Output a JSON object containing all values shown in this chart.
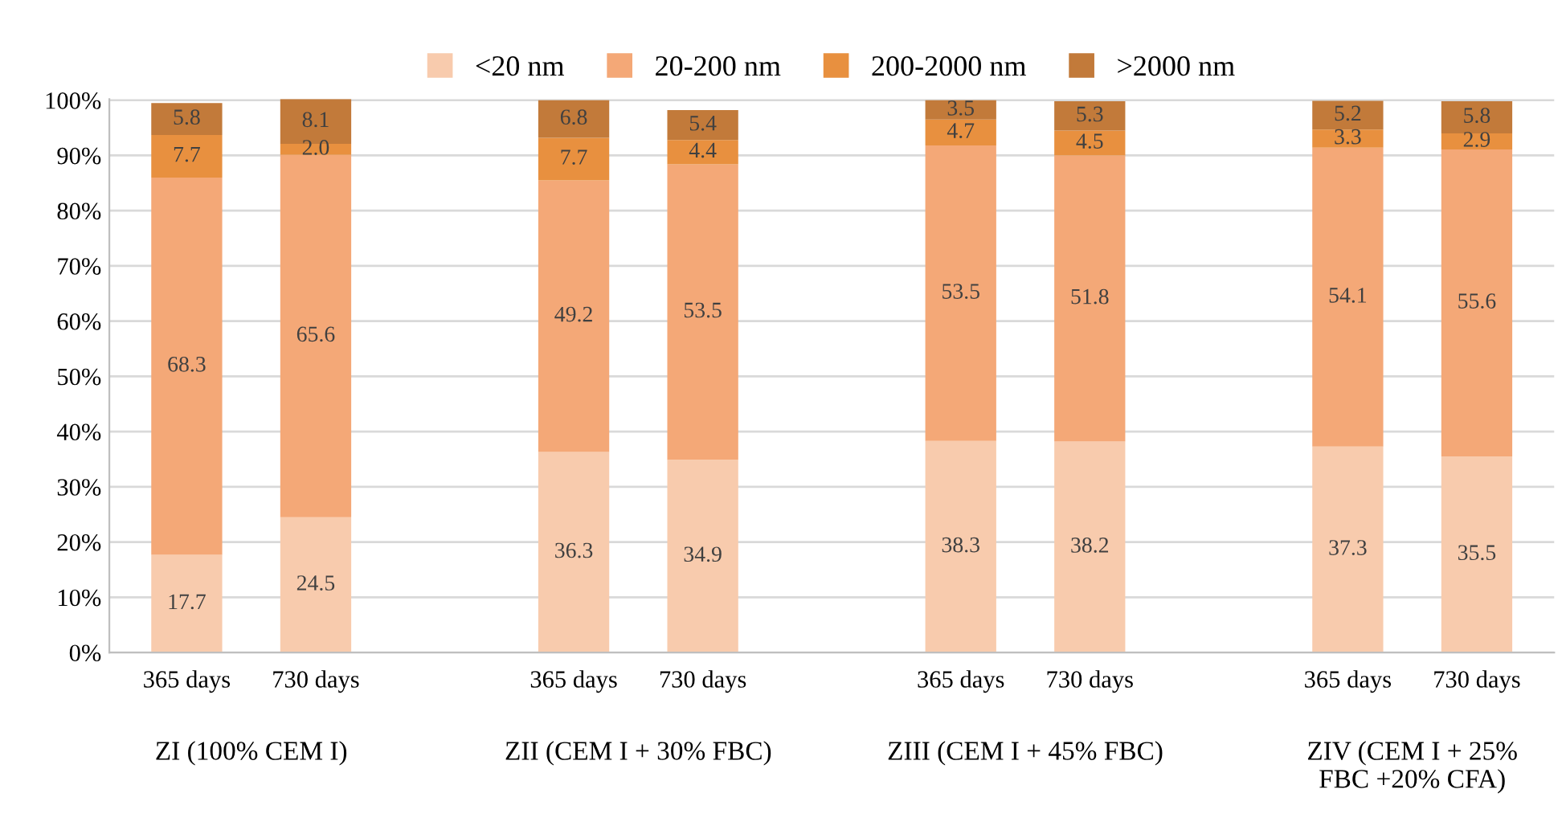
{
  "chart_data": {
    "type": "bar",
    "stacked": true,
    "categories": [
      "365 days",
      "730 days",
      null,
      "365 days",
      "730 days",
      null,
      "365 days",
      "730 days",
      null,
      "365 days",
      "730 days"
    ],
    "series": [
      {
        "name": "<20 nm",
        "color": "#f8cbad",
        "values": [
          17.7,
          24.5,
          null,
          36.3,
          34.9,
          null,
          38.3,
          38.2,
          null,
          37.3,
          35.5
        ],
        "value_labels": [
          "17.7",
          "24.5",
          null,
          "36.3",
          "34.9",
          null,
          "38.3",
          "38.2",
          null,
          "37.3",
          "35.5"
        ]
      },
      {
        "name": "20-200 nm",
        "color": "#f4a877",
        "values": [
          68.3,
          65.6,
          null,
          49.2,
          53.5,
          null,
          53.5,
          51.8,
          null,
          54.1,
          55.6
        ],
        "value_labels": [
          "68.3",
          "65.6",
          null,
          "49.2",
          "53.5",
          null,
          "53.5",
          "51.8",
          null,
          "54.1",
          "55.6"
        ]
      },
      {
        "name": "200-2000 nm",
        "color": "#e8903f",
        "values": [
          7.7,
          2.0,
          null,
          7.7,
          4.4,
          null,
          4.7,
          4.5,
          null,
          3.3,
          2.9
        ],
        "value_labels": [
          "7.7",
          "2.0",
          null,
          "7.7",
          "4.4",
          null,
          "4.7",
          "4.5",
          null,
          "3.3",
          "2.9"
        ]
      },
      {
        "name": ">2000 nm",
        "color": "#c27a3a",
        "values": [
          5.8,
          8.1,
          null,
          6.8,
          5.4,
          null,
          3.5,
          5.3,
          null,
          5.2,
          5.8
        ],
        "value_labels": [
          "5.8",
          "8.1",
          null,
          "6.8",
          "5.4",
          null,
          "3.5",
          "5.3",
          null,
          "5.2",
          "5.8"
        ]
      }
    ],
    "ylim": [
      0,
      100.2
    ],
    "yticks": [
      {
        "value": 0,
        "label": "0%"
      },
      {
        "value": 10,
        "label": "10%"
      },
      {
        "value": 20,
        "label": "20%"
      },
      {
        "value": 30,
        "label": "30%"
      },
      {
        "value": 40,
        "label": "40%"
      },
      {
        "value": 50,
        "label": "50%"
      },
      {
        "value": 60,
        "label": "60%"
      },
      {
        "value": 70,
        "label": "70%"
      },
      {
        "value": 80,
        "label": "80%"
      },
      {
        "value": 90,
        "label": "90%"
      },
      {
        "value": 100,
        "label": "100%"
      }
    ],
    "grid": "y",
    "legend": "top",
    "annotations": [
      "ZI (100% CEM I)",
      "ZII (CEM I + 30% FBC)",
      "ZIII (CEM I + 45% FBC)",
      "ZIV (CEM I + 25%\nFBC +20% CFA)"
    ]
  }
}
